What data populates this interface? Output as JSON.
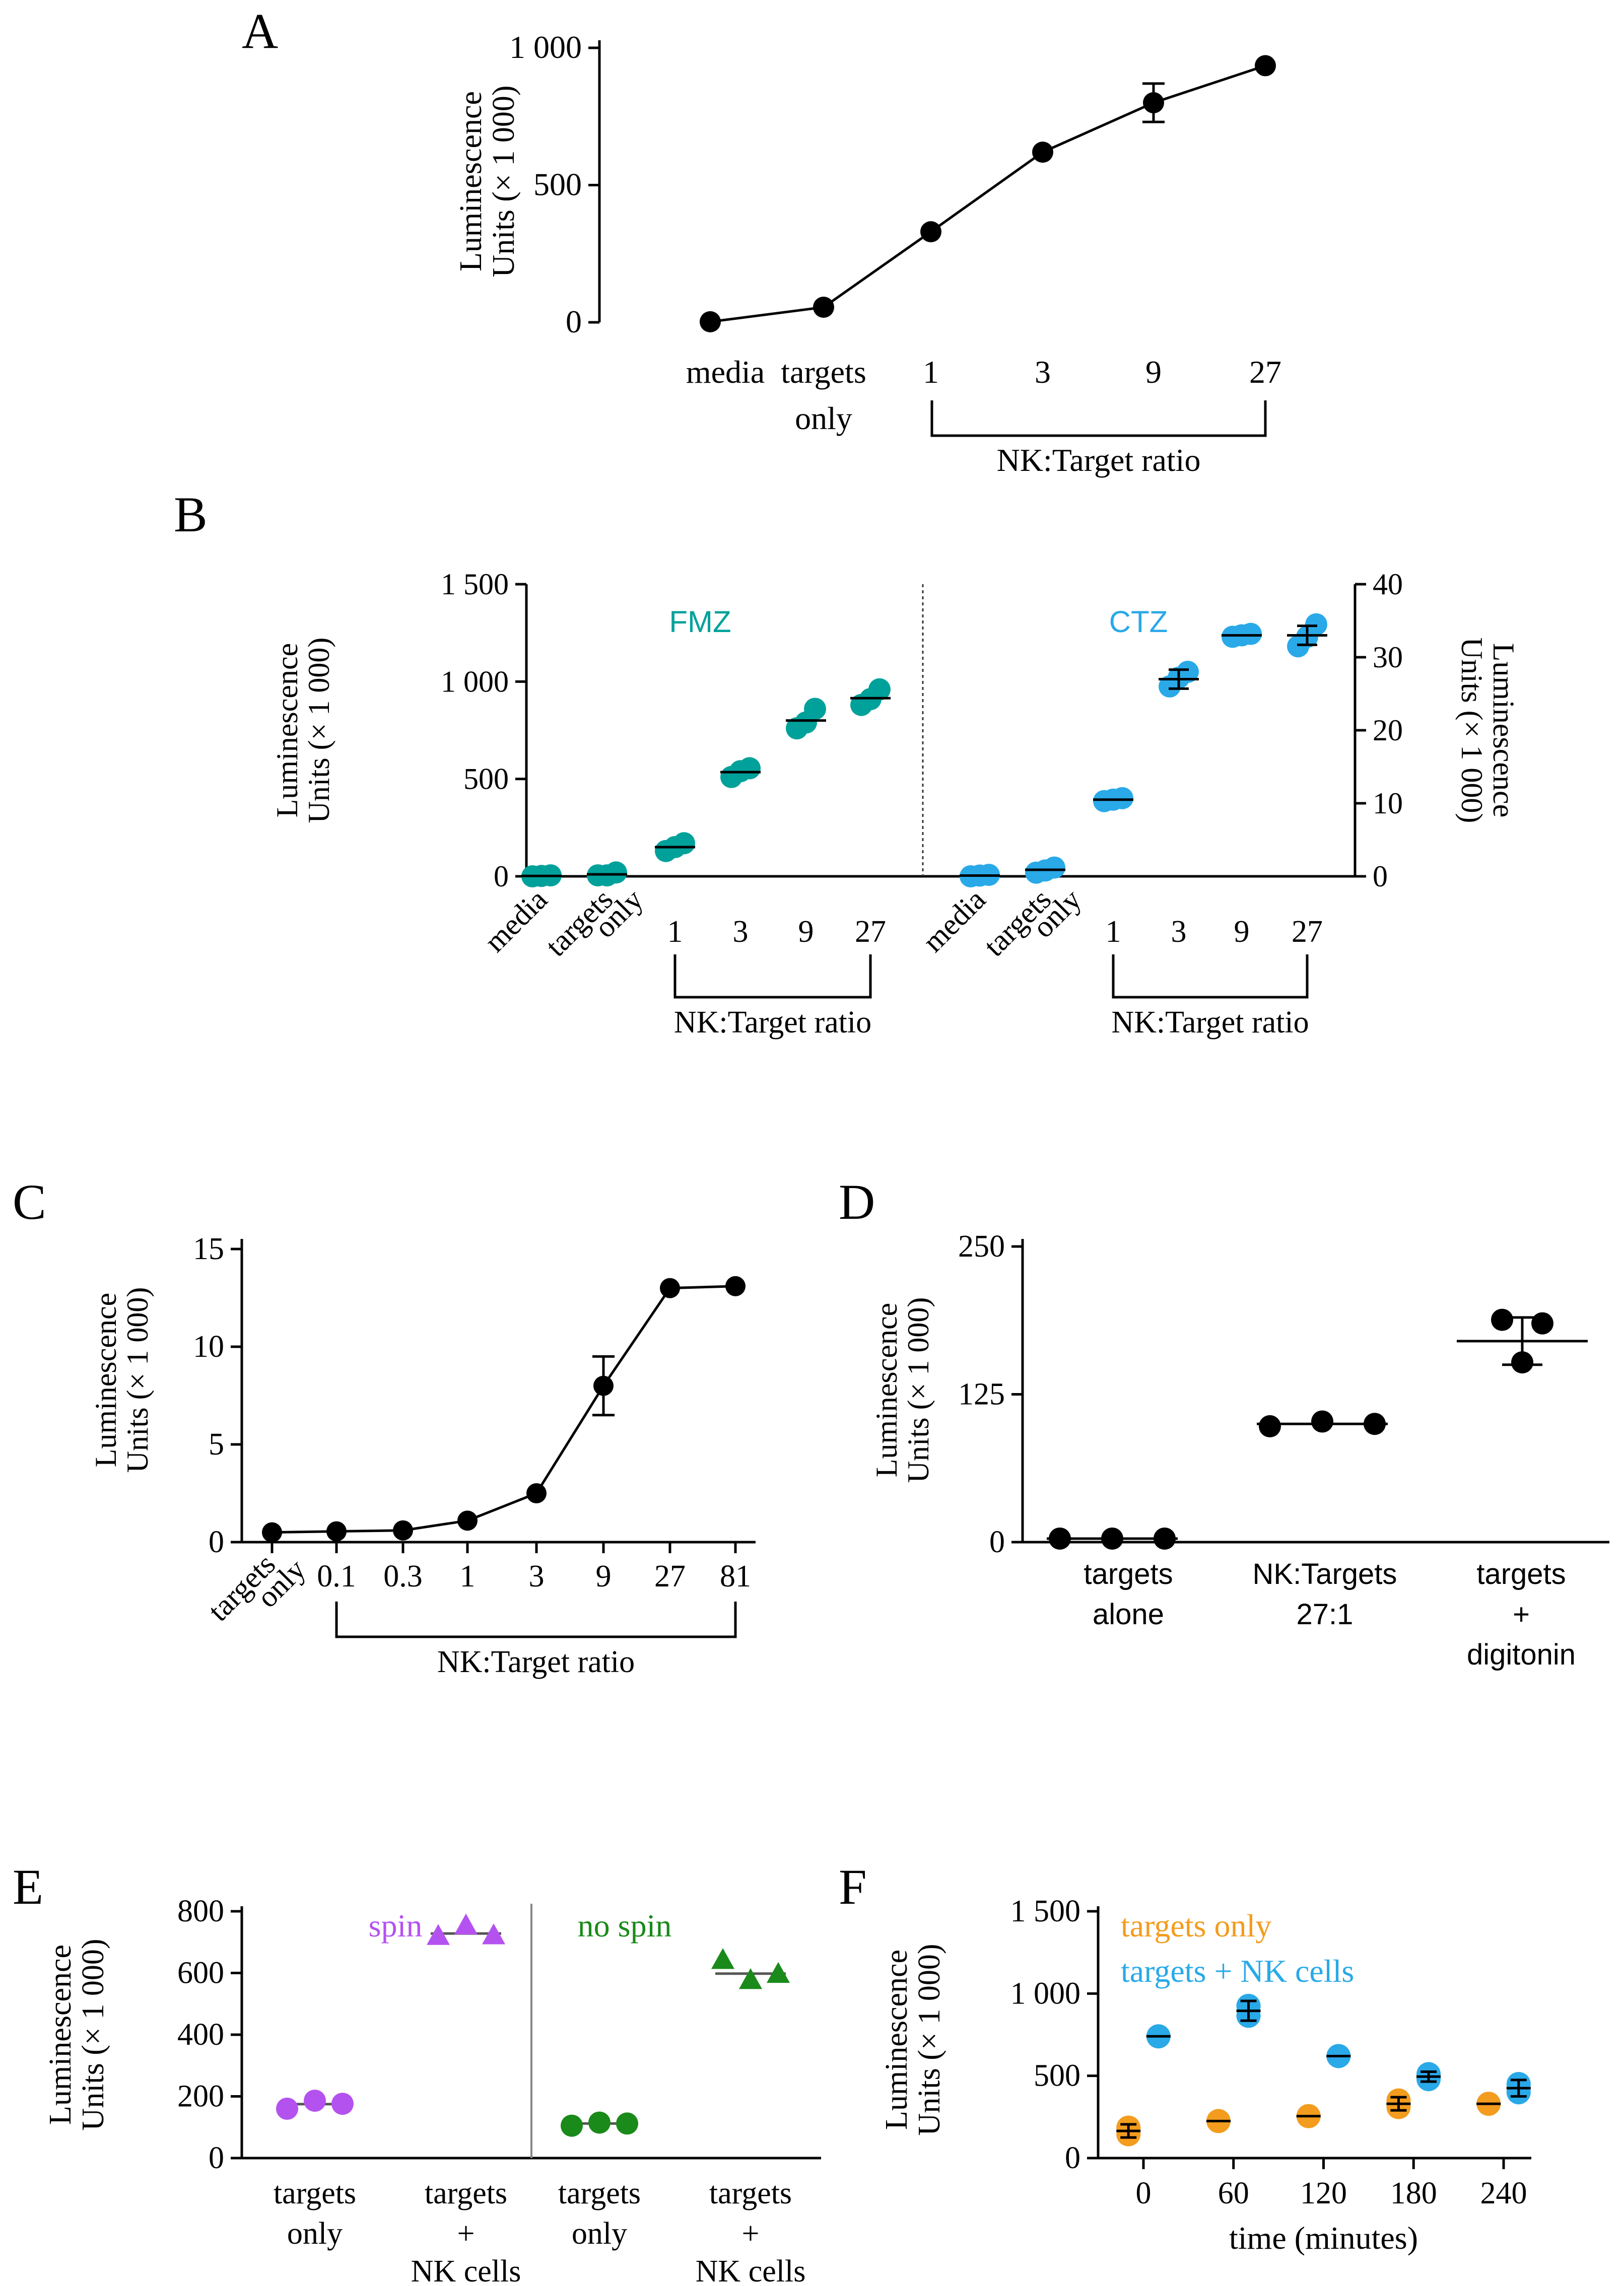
{
  "figure": {
    "panel_letters": [
      "A",
      "B",
      "C",
      "D",
      "E",
      "F"
    ]
  },
  "chart_data": [
    {
      "panel": "A",
      "type": "line",
      "ylabel_line1": "Luminescence",
      "ylabel_line2": "Units (× 1 000)",
      "ylim": [
        0,
        1000
      ],
      "yticks": [
        0,
        500,
        1000
      ],
      "ytick_labels": [
        "0",
        "500",
        "1 000"
      ],
      "categories": [
        {
          "label1": "media",
          "label2": ""
        },
        {
          "label1": "targets",
          "label2": "only"
        },
        {
          "label1": "1",
          "label2": ""
        },
        {
          "label1": "3",
          "label2": ""
        },
        {
          "label1": "9",
          "label2": ""
        },
        {
          "label1": "27",
          "label2": ""
        }
      ],
      "values": [
        2,
        55,
        330,
        620,
        800,
        935
      ],
      "errors": [
        0,
        0,
        0,
        0,
        70,
        0
      ],
      "bracket_label": "NK:Target ratio",
      "marker_color": "#000000"
    },
    {
      "panel": "B",
      "type": "scatter",
      "ylabel_line1": "Luminescence",
      "ylabel_line2": "Units (× 1 000)",
      "ylim": [
        0,
        1500
      ],
      "yticks": [
        0,
        500,
        1000,
        1500
      ],
      "ytick_labels": [
        "0",
        "500",
        "1 000",
        "1 500"
      ],
      "y2label_line1": "Luminescence",
      "y2label_line2": "Units (× 1 000)",
      "y2lim": [
        0,
        40
      ],
      "y2ticks": [
        0,
        10,
        20,
        30,
        40
      ],
      "y2tick_labels": [
        "0",
        "10",
        "20",
        "30",
        "40"
      ],
      "tick_labels": [
        "media",
        "targets",
        "only",
        "1",
        "3",
        "9",
        "27",
        "media",
        "targets",
        "only",
        "1",
        "3",
        "9",
        "27"
      ],
      "bracket_label_left": "NK:Target ratio",
      "bracket_label_right": "NK:Target ratio",
      "series": [
        {
          "name": "FMZ",
          "axis": "left",
          "color": "#00a19a",
          "means": [
            2,
            10,
            150,
            535,
            800,
            915
          ],
          "points": [
            [
              0,
              5,
              2
            ],
            [
              5,
              20,
              5
            ],
            [
              130,
              170,
              150
            ],
            [
              510,
              555,
              540
            ],
            [
              760,
              860,
              790
            ],
            [
              880,
              960,
              910
            ]
          ]
        },
        {
          "name": "CTZ",
          "axis": "right",
          "color": "#29a9e8",
          "means": [
            0.1,
            0.9,
            10.5,
            27,
            33,
            33
          ],
          "errors": [
            0,
            0,
            0,
            1.3,
            0,
            1.3
          ],
          "points": [
            [
              0,
              0.2,
              0.1
            ],
            [
              0.5,
              1.2,
              0.8
            ],
            [
              10.3,
              10.7,
              10.5
            ],
            [
              26,
              28,
              27.2
            ],
            [
              32.8,
              33.2,
              33
            ],
            [
              31.5,
              34.5,
              32.8
            ]
          ]
        }
      ]
    },
    {
      "panel": "C",
      "type": "line",
      "ylabel_line1": "Luminescence",
      "ylabel_line2": "Units (× 1 000)",
      "ylim": [
        0,
        15
      ],
      "yticks": [
        0,
        5,
        10,
        15
      ],
      "ytick_labels": [
        "0",
        "5",
        "10",
        "15"
      ],
      "tick_labels": [
        "targets",
        "only",
        "0.1",
        "0.3",
        "1",
        "3",
        "9",
        "27",
        "81"
      ],
      "values": [
        0.5,
        0.55,
        0.6,
        1.1,
        2.5,
        8.0,
        13.0,
        13.1
      ],
      "errors": [
        0,
        0,
        0,
        0,
        0,
        1.5,
        0,
        0
      ],
      "bracket_label": "NK:Target ratio",
      "marker_color": "#000000"
    },
    {
      "panel": "D",
      "type": "scatter",
      "ylabel_line1": "Luminescence",
      "ylabel_line2": "Units (× 1 000)",
      "ylim": [
        0,
        250
      ],
      "yticks": [
        0,
        125,
        250
      ],
      "ytick_labels": [
        "0",
        "125",
        "250"
      ],
      "categories": [
        {
          "l1": "targets",
          "l2": "alone",
          "l3": ""
        },
        {
          "l1": "NK:Targets",
          "l2": "27:1",
          "l3": ""
        },
        {
          "l1": "targets",
          "l2": "+",
          "l3": "digitonin"
        }
      ],
      "means": [
        3,
        100,
        170
      ],
      "errors": [
        0,
        0,
        20
      ],
      "points": [
        [
          3,
          3,
          3
        ],
        [
          98,
          102,
          100
        ],
        [
          188,
          185,
          152
        ]
      ],
      "marker_color": "#000000"
    },
    {
      "panel": "E",
      "type": "scatter",
      "ylabel_line1": "Luminescence",
      "ylabel_line2": "Units (× 1 000)",
      "ylim": [
        0,
        800
      ],
      "yticks": [
        0,
        200,
        400,
        600,
        800
      ],
      "ytick_labels": [
        "0",
        "200",
        "400",
        "600",
        "800"
      ],
      "group_labels": [
        "spin",
        "no spin"
      ],
      "group_colors": [
        "#b452f0",
        "#1a8a1a"
      ],
      "categories": [
        {
          "l1": "targets",
          "l2": "only",
          "l3": ""
        },
        {
          "l1": "targets",
          "l2": "+",
          "l3": "NK cells"
        },
        {
          "l1": "targets",
          "l2": "only",
          "l3": ""
        },
        {
          "l1": "targets",
          "l2": "+",
          "l3": "NK cells"
        }
      ],
      "means": [
        175,
        728,
        112,
        598
      ],
      "points": [
        [
          160,
          186,
          176
        ],
        [
          718,
          752,
          720
        ],
        [
          105,
          115,
          112
        ],
        [
          640,
          575,
          595
        ]
      ],
      "markers": [
        "circle",
        "triangle",
        "circle",
        "triangle"
      ],
      "median_line_color": "#555555"
    },
    {
      "panel": "F",
      "type": "scatter",
      "ylabel_line1": "Luminescence",
      "ylabel_line2": "Units (× 1 000)",
      "xlabel": "time (minutes)",
      "ylim": [
        0,
        1500
      ],
      "yticks": [
        0,
        500,
        1000,
        1500
      ],
      "ytick_labels": [
        "0",
        "500",
        "1 000",
        "1 500"
      ],
      "xticks": [
        0,
        60,
        120,
        180,
        240
      ],
      "xtick_labels": [
        "0",
        "60",
        "120",
        "180",
        "240"
      ],
      "series": [
        {
          "name": "targets only",
          "color": "#f39c1e",
          "x": [
            -10,
            50,
            110,
            170,
            230
          ],
          "means": [
            165,
            225,
            255,
            330,
            330
          ],
          "errors": [
            40,
            0,
            0,
            40,
            0
          ]
        },
        {
          "name": "targets + NK cells",
          "color": "#29a9e8",
          "x": [
            10,
            70,
            130,
            190,
            250
          ],
          "means": [
            740,
            895,
            620,
            495,
            425
          ],
          "errors": [
            0,
            60,
            0,
            30,
            50
          ]
        }
      ]
    }
  ]
}
